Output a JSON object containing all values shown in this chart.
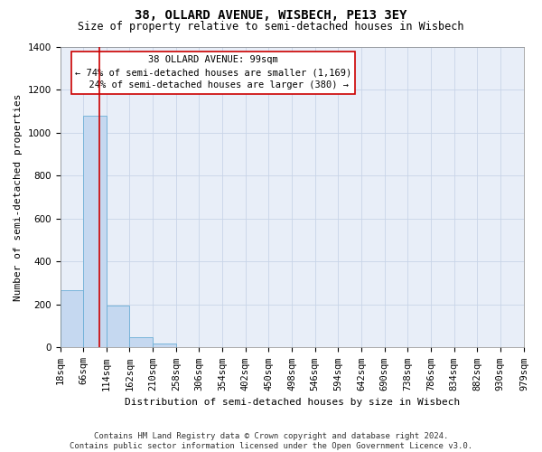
{
  "title": "38, OLLARD AVENUE, WISBECH, PE13 3EY",
  "subtitle": "Size of property relative to semi-detached houses in Wisbech",
  "xlabel": "Distribution of semi-detached houses by size in Wisbech",
  "ylabel": "Number of semi-detached properties",
  "annotation_text": "38 OLLARD AVENUE: 99sqm\n← 74% of semi-detached houses are smaller (1,169)\n  24% of semi-detached houses are larger (380) →",
  "bin_edges": [
    18,
    66,
    114,
    162,
    210,
    258,
    306,
    354,
    402,
    450,
    498,
    546,
    594,
    642,
    690,
    738,
    786,
    834,
    882,
    930,
    979
  ],
  "bin_labels": [
    "18sqm",
    "66sqm",
    "114sqm",
    "162sqm",
    "210sqm",
    "258sqm",
    "306sqm",
    "354sqm",
    "402sqm",
    "450sqm",
    "498sqm",
    "546sqm",
    "594sqm",
    "642sqm",
    "690sqm",
    "738sqm",
    "786sqm",
    "834sqm",
    "882sqm",
    "930sqm",
    "979sqm"
  ],
  "bar_heights": [
    265,
    1080,
    195,
    50,
    18,
    0,
    0,
    0,
    0,
    0,
    0,
    0,
    0,
    0,
    0,
    0,
    0,
    0,
    0,
    0
  ],
  "bar_color": "#c5d8f0",
  "bar_edge_color": "#6baed6",
  "vline_color": "#cc0000",
  "vline_x": 99,
  "ylim": [
    0,
    1400
  ],
  "yticks": [
    0,
    200,
    400,
    600,
    800,
    1000,
    1200,
    1400
  ],
  "grid_color": "#c8d4e8",
  "background_color": "#e8eef8",
  "box_edge_color": "#cc0000",
  "footer": "Contains HM Land Registry data © Crown copyright and database right 2024.\nContains public sector information licensed under the Open Government Licence v3.0.",
  "title_fontsize": 10,
  "subtitle_fontsize": 8.5,
  "xlabel_fontsize": 8,
  "ylabel_fontsize": 8,
  "tick_fontsize": 7.5,
  "annotation_fontsize": 7.5,
  "footer_fontsize": 6.5
}
